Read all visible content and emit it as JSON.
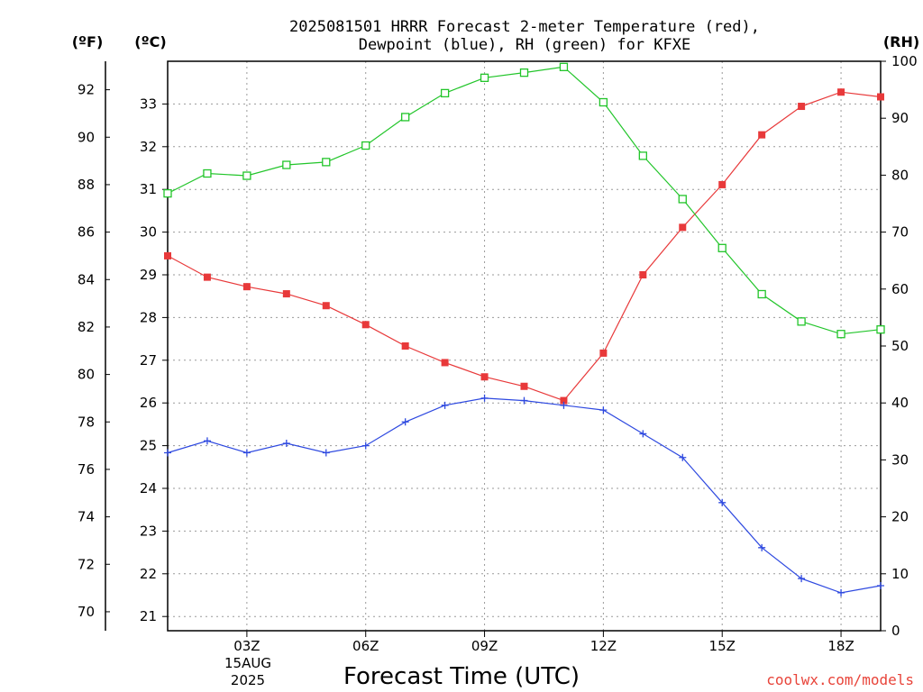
{
  "chart_data": {
    "type": "line",
    "title": "2025081501 HRRR Forecast 2-meter Temperature (red),",
    "subtitle": "Dewpoint (blue), RH (green) for KFXE",
    "xlabel": "Forecast Time (UTC)",
    "unit_labels": {
      "f": "(ºF)",
      "c": "(ºC)",
      "rh": "(RH)"
    },
    "credit": "coolwx.com/models",
    "credit_color": "#e8443a",
    "x_hours": [
      1,
      2,
      3,
      4,
      5,
      6,
      7,
      8,
      9,
      10,
      11,
      12,
      13,
      14,
      15,
      16,
      17,
      18,
      19
    ],
    "x_range": [
      1,
      19
    ],
    "x_tick_hours": [
      3,
      6,
      9,
      12,
      15,
      18
    ],
    "x_tick_labels": [
      "03Z",
      "06Z",
      "09Z",
      "12Z",
      "15Z",
      "18Z"
    ],
    "x_date_line1": "15AUG",
    "x_date_line2": "2025",
    "y_f_range": [
      69.2,
      93.2
    ],
    "y_f_ticks": [
      "70",
      "72",
      "74",
      "76",
      "78",
      "80",
      "82",
      "84",
      "86",
      "88",
      "90",
      "92"
    ],
    "y_c_ticks": [
      "21",
      "22",
      "23",
      "24",
      "25",
      "26",
      "27",
      "28",
      "29",
      "30",
      "31",
      "32",
      "33"
    ],
    "y_rh_range": [
      0,
      100
    ],
    "y_rh_ticks": [
      "0",
      "10",
      "20",
      "30",
      "40",
      "50",
      "60",
      "70",
      "80",
      "90",
      "100"
    ],
    "grid": true,
    "series": [
      {
        "name": "Temperature",
        "unit": "F",
        "color": "#e8393a",
        "marker": "filled-square",
        "values": [
          85.0,
          84.1,
          83.7,
          83.4,
          82.9,
          82.1,
          81.2,
          80.5,
          79.9,
          79.5,
          78.9,
          80.9,
          84.2,
          86.2,
          88.0,
          90.1,
          91.3,
          91.9,
          91.7
        ]
      },
      {
        "name": "Dewpoint",
        "unit": "F",
        "color": "#2e49e0",
        "marker": "plus",
        "values": [
          76.7,
          77.2,
          76.7,
          77.1,
          76.7,
          77.0,
          78.0,
          78.7,
          79.0,
          78.9,
          78.7,
          78.5,
          77.5,
          76.5,
          74.6,
          72.7,
          71.4,
          70.8,
          71.1
        ]
      },
      {
        "name": "RH",
        "unit": "%",
        "color": "#22c52a",
        "marker": "open-square",
        "values": [
          76.8,
          80.3,
          79.9,
          81.8,
          82.3,
          85.2,
          90.2,
          94.4,
          97.1,
          98.0,
          99.0,
          92.8,
          83.4,
          75.8,
          67.2,
          59.1,
          54.3,
          52.1,
          52.9
        ]
      }
    ]
  }
}
